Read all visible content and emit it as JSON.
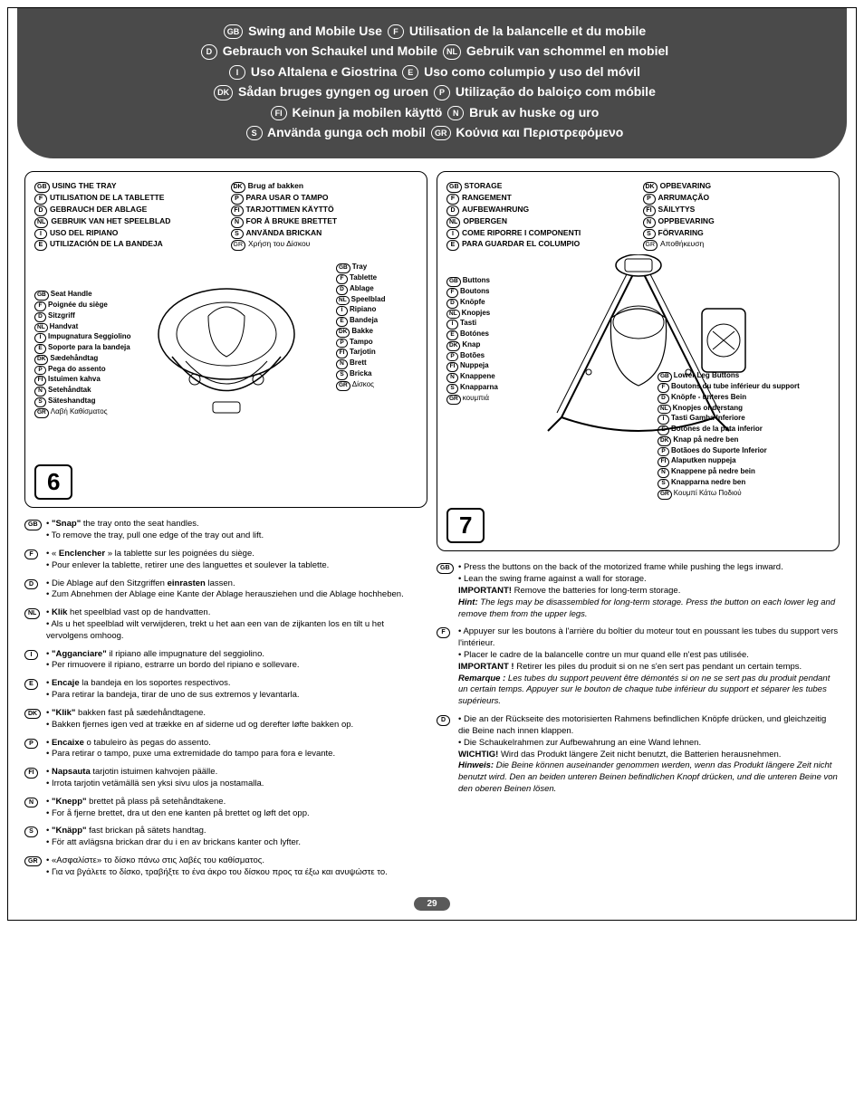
{
  "header": {
    "rows": [
      [
        {
          "code": "GB",
          "text": "Swing and Mobile Use"
        },
        {
          "code": "F",
          "text": "Utilisation de la balancelle et du mobile"
        }
      ],
      [
        {
          "code": "D",
          "text": "Gebrauch von Schaukel und Mobile"
        },
        {
          "code": "NL",
          "text": "Gebruik van schommel en mobiel"
        }
      ],
      [
        {
          "code": "I",
          "text": "Uso Altalena e Giostrina"
        },
        {
          "code": "E",
          "text": "Uso como columpio y uso del móvil"
        }
      ],
      [
        {
          "code": "DK",
          "text": "Sådan bruges gyngen og uroen"
        },
        {
          "code": "P",
          "text": "Utilização do baloiço com móbile"
        }
      ],
      [
        {
          "code": "FI",
          "text": "Keinun ja mobilen käyttö"
        },
        {
          "code": "N",
          "text": "Bruk av huske og uro"
        }
      ],
      [
        {
          "code": "S",
          "text": "Använda gunga och mobil"
        },
        {
          "code": "GR",
          "text": "Κούνια και Περιστρεφόμενο"
        }
      ]
    ]
  },
  "figure6": {
    "num": "6",
    "titles_left": [
      {
        "code": "GB",
        "text": "USING THE TRAY",
        "bold": true
      },
      {
        "code": "F",
        "text": "UTILISATION DE LA TABLETTE",
        "bold": true
      },
      {
        "code": "D",
        "text": "GEBRAUCH DER ABLAGE",
        "bold": true
      },
      {
        "code": "NL",
        "text": "GEBRUIK VAN HET SPEELBLAD",
        "bold": true
      },
      {
        "code": "I",
        "text": "USO DEL RIPIANO",
        "bold": true
      },
      {
        "code": "E",
        "text": "UTILIZACIÓN DE LA BANDEJA",
        "bold": true
      }
    ],
    "titles_right": [
      {
        "code": "DK",
        "text": "Brug af bakken",
        "bold": true
      },
      {
        "code": "P",
        "text": "PARA USAR O TAMPO",
        "bold": true
      },
      {
        "code": "FI",
        "text": "TARJOTTIMEN KÄYTTÖ",
        "bold": true
      },
      {
        "code": "N",
        "text": "FOR Å BRUKE BRETTET",
        "bold": true
      },
      {
        "code": "S",
        "text": "ANVÄNDA BRICKAN",
        "bold": true
      },
      {
        "code": "GR",
        "text": "Χρήση του Δίσκου",
        "bold": false
      }
    ],
    "labels_left": [
      {
        "code": "GB",
        "text": "Seat Handle"
      },
      {
        "code": "F",
        "text": "Poignée du siège"
      },
      {
        "code": "D",
        "text": "Sitzgriff"
      },
      {
        "code": "NL",
        "text": "Handvat"
      },
      {
        "code": "I",
        "text": "Impugnatura Seggiolino"
      },
      {
        "code": "E",
        "text": "Soporte para la bandeja"
      },
      {
        "code": "DK",
        "text": "Sædehåndtag"
      },
      {
        "code": "P",
        "text": "Pega do assento"
      },
      {
        "code": "FI",
        "text": "Istuimen kahva"
      },
      {
        "code": "N",
        "text": "Setehåndtak"
      },
      {
        "code": "S",
        "text": "Säteshandtag"
      },
      {
        "code": "GR",
        "text": "Λαβή Καθίσματος",
        "bold": false
      }
    ],
    "labels_right": [
      {
        "code": "GB",
        "text": "Tray"
      },
      {
        "code": "F",
        "text": "Tablette"
      },
      {
        "code": "D",
        "text": "Ablage"
      },
      {
        "code": "NL",
        "text": "Speelblad"
      },
      {
        "code": "I",
        "text": "Ripiano"
      },
      {
        "code": "E",
        "text": "Bandeja"
      },
      {
        "code": "DK",
        "text": "Bakke"
      },
      {
        "code": "P",
        "text": "Tampo"
      },
      {
        "code": "FI",
        "text": "Tarjotin"
      },
      {
        "code": "N",
        "text": "Brett"
      },
      {
        "code": "S",
        "text": "Bricka"
      },
      {
        "code": "GR",
        "text": "Δίσκος",
        "bold": false
      }
    ]
  },
  "figure7": {
    "num": "7",
    "titles_left": [
      {
        "code": "GB",
        "text": "STORAGE",
        "bold": true
      },
      {
        "code": "F",
        "text": "RANGEMENT",
        "bold": true
      },
      {
        "code": "D",
        "text": "AUFBEWAHRUNG",
        "bold": true
      },
      {
        "code": "NL",
        "text": "OPBERGEN",
        "bold": true
      },
      {
        "code": "I",
        "text": "COME RIPORRE I COMPONENTI",
        "bold": true
      },
      {
        "code": "E",
        "text": "PARA GUARDAR EL COLUMPIO",
        "bold": true
      }
    ],
    "titles_right": [
      {
        "code": "DK",
        "text": "OPBEVARING",
        "bold": true
      },
      {
        "code": "P",
        "text": "ARRUMAÇÃO",
        "bold": true
      },
      {
        "code": "FI",
        "text": "SÄILYTYS",
        "bold": true
      },
      {
        "code": "N",
        "text": "OPPBEVARING",
        "bold": true
      },
      {
        "code": "S",
        "text": "FÖRVARING",
        "bold": true
      },
      {
        "code": "GR",
        "text": "Αποθήκευση",
        "bold": false
      }
    ],
    "labels_left": [
      {
        "code": "GB",
        "text": "Buttons"
      },
      {
        "code": "F",
        "text": "Boutons"
      },
      {
        "code": "D",
        "text": "Knöpfe"
      },
      {
        "code": "NL",
        "text": "Knopjes"
      },
      {
        "code": "I",
        "text": "Tasti"
      },
      {
        "code": "E",
        "text": "Botónes"
      },
      {
        "code": "DK",
        "text": "Knap"
      },
      {
        "code": "P",
        "text": "Botões"
      },
      {
        "code": "FI",
        "text": "Nuppeja"
      },
      {
        "code": "N",
        "text": "Knappene"
      },
      {
        "code": "S",
        "text": "Knapparna"
      },
      {
        "code": "GR",
        "text": "κουμπιά",
        "bold": false
      }
    ],
    "labels_bottom": [
      {
        "code": "GB",
        "text": "Lower Leg Buttons"
      },
      {
        "code": "F",
        "text": "Boutons du tube inférieur du support"
      },
      {
        "code": "D",
        "text": "Knöpfe - unteres Bein"
      },
      {
        "code": "NL",
        "text": "Knopjes onderstang"
      },
      {
        "code": "I",
        "text": "Tasti Gamba Inferiore"
      },
      {
        "code": "E",
        "text": "Botónes de la pata inferior"
      },
      {
        "code": "DK",
        "text": "Knap på nedre ben"
      },
      {
        "code": "P",
        "text": "Botãoes do Suporte Inferior"
      },
      {
        "code": "FI",
        "text": "Alaputken nuppeja"
      },
      {
        "code": "N",
        "text": "Knappene på nedre bein"
      },
      {
        "code": "S",
        "text": "Knapparna nedre ben"
      },
      {
        "code": "GR",
        "text": "Κουμπί Κάτω Ποδιού",
        "bold": false
      }
    ]
  },
  "instructions_left": [
    {
      "code": "GB",
      "lines": [
        {
          "b": true,
          "pre": "• ",
          "bold": "\"Snap\"",
          "post": " the tray onto the seat handles."
        },
        {
          "pre": "• ",
          "post": "To remove the tray, pull one edge of the tray out and lift."
        }
      ]
    },
    {
      "code": "F",
      "lines": [
        {
          "pre": "• « ",
          "bold": "Enclencher",
          "post": " » la tablette sur les poignées du siège."
        },
        {
          "pre": "• ",
          "post": "Pour enlever la tablette, retirer une des languettes et soulever la tablette."
        }
      ]
    },
    {
      "code": "D",
      "lines": [
        {
          "pre": "• Die Ablage auf den Sitzgriffen ",
          "bold": "einrasten",
          "post": " lassen."
        },
        {
          "pre": "• ",
          "post": "Zum Abnehmen der Ablage eine Kante der Ablage herausziehen und die Ablage hochheben."
        }
      ]
    },
    {
      "code": "NL",
      "lines": [
        {
          "pre": "• ",
          "bold": "Klik",
          "post": " het speelblad vast op de handvatten."
        },
        {
          "pre": "• ",
          "post": "Als u het speelblad wilt verwijderen, trekt u het aan een van de zijkanten los en tilt u het vervolgens omhoog."
        }
      ]
    },
    {
      "code": "I",
      "lines": [
        {
          "pre": "• ",
          "bold": "\"Agganciare\"",
          "post": " il ripiano alle impugnature del seggiolino."
        },
        {
          "pre": "• ",
          "post": "Per rimuovere il ripiano, estrarre un bordo del ripiano e sollevare."
        }
      ]
    },
    {
      "code": "E",
      "lines": [
        {
          "pre": "• ",
          "bold": "Encaje",
          "post": " la bandeja en los soportes respectivos."
        },
        {
          "pre": "• ",
          "post": "Para retirar la bandeja, tirar de uno de sus extremos y levantarla."
        }
      ]
    },
    {
      "code": "DK",
      "lines": [
        {
          "pre": "• ",
          "bold": "\"Klik\"",
          "post": " bakken fast på sædehåndtagene."
        },
        {
          "pre": "• ",
          "post": "Bakken fjernes igen ved at trække en af siderne ud og derefter løfte bakken op."
        }
      ]
    },
    {
      "code": "P",
      "lines": [
        {
          "pre": "• ",
          "bold": "Encaixe",
          "post": " o tabuleiro às pegas do assento."
        },
        {
          "pre": "• ",
          "post": "Para retirar o tampo, puxe uma extremidade do tampo para fora e levante."
        }
      ]
    },
    {
      "code": "FI",
      "lines": [
        {
          "pre": "• ",
          "bold": "Napsauta",
          "post": " tarjotin istuimen kahvojen päälle."
        },
        {
          "pre": "• ",
          "post": "Irrota tarjotin vetämällä sen yksi sivu ulos ja nostamalla."
        }
      ]
    },
    {
      "code": "N",
      "lines": [
        {
          "pre": "• ",
          "bold": "\"Knepp\"",
          "post": " brettet på plass på setehåndtakene."
        },
        {
          "pre": "• ",
          "post": "For å fjerne brettet, dra ut den ene kanten på brettet og løft det opp."
        }
      ]
    },
    {
      "code": "S",
      "lines": [
        {
          "pre": "• ",
          "bold": "\"Knäpp\"",
          "post": " fast brickan på sätets handtag."
        },
        {
          "pre": "• ",
          "post": "För att avlägsna brickan drar du i en av brickans kanter och lyfter."
        }
      ]
    },
    {
      "code": "GR",
      "lines": [
        {
          "pre": "• ",
          "post": "«Ασφαλίστε» το δίσκο πάνω στις λαβές του καθίσματος."
        },
        {
          "pre": "• ",
          "post": "Για να βγάλετε το δίσκο, τραβήξτε το ένα άκρο του δίσκου προς τα έξω και ανυψώστε το."
        }
      ]
    }
  ],
  "instructions_right": [
    {
      "code": "GB",
      "lines": [
        {
          "pre": "• ",
          "post": "Press the buttons on the back of the motorized frame while pushing the legs inward."
        },
        {
          "pre": "• ",
          "post": "Lean the swing frame against a wall for storage."
        },
        {
          "pre": "",
          "bold": "IMPORTANT!",
          "post": " Remove the batteries for long-term storage."
        },
        {
          "pre": "",
          "italic_bold": "Hint:",
          "italic": " The legs may be disassembled for long-term storage. Press the button on each lower leg and remove them from the upper legs."
        }
      ]
    },
    {
      "code": "F",
      "lines": [
        {
          "pre": "• ",
          "post": "Appuyer sur les boutons à l'arrière du boîtier du moteur tout en poussant les tubes du support vers l'intérieur."
        },
        {
          "pre": "• ",
          "post": "Placer le cadre de la balancelle contre un mur quand elle n'est pas utilisée."
        },
        {
          "pre": "",
          "bold": "IMPORTANT !",
          "post": " Retirer les piles du produit si on ne s'en sert pas pendant un certain temps."
        },
        {
          "pre": "",
          "italic_bold": "Remarque :",
          "italic": " Les tubes du support peuvent être démontés si on ne se sert pas du produit pendant un certain temps. Appuyer sur le bouton de chaque tube inférieur du support et séparer les tubes supérieurs."
        }
      ]
    },
    {
      "code": "D",
      "lines": [
        {
          "pre": "• ",
          "post": "Die an der Rückseite des motorisierten Rahmens befindlichen Knöpfe drücken, und gleichzeitig die Beine nach innen klappen."
        },
        {
          "pre": "• ",
          "post": "Die Schaukelrahmen zur Aufbewahrung an eine Wand lehnen."
        },
        {
          "pre": "",
          "bold": "WICHTIG!",
          "post": " Wird das Produkt längere Zeit nicht benutzt, die Batterien herausnehmen."
        },
        {
          "pre": "",
          "italic_bold": "Hinweis:",
          "italic": " Die Beine können auseinander genommen werden, wenn das Produkt längere Zeit nicht benutzt wird. Den an beiden unteren Beinen befindlichen Knopf drücken, und die unteren Beine von den oberen Beinen lösen."
        }
      ]
    }
  ],
  "pagenum": "29"
}
